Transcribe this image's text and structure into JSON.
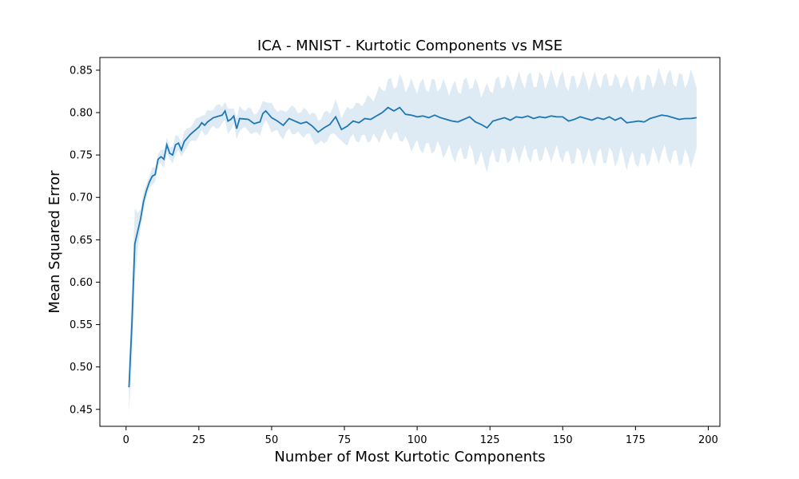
{
  "chart_data": {
    "type": "line",
    "title": "ICA - MNIST - Kurtotic Components vs MSE",
    "xlabel": "Number of Most Kurtotic Components",
    "ylabel": "Mean Squared Error",
    "xlim": [
      -9,
      204
    ],
    "ylim": [
      0.43,
      0.865
    ],
    "xticks": [
      0,
      25,
      50,
      75,
      100,
      125,
      150,
      175,
      200
    ],
    "yticks": [
      0.45,
      0.5,
      0.55,
      0.6,
      0.65,
      0.7,
      0.75,
      0.8,
      0.85
    ],
    "grid": false,
    "legend": "none",
    "colors": {
      "line": "#1f77b4",
      "band": "#1f77b4"
    },
    "series": [
      {
        "x_start": 1,
        "x_end": 196,
        "control_points": [
          [
            1,
            0.476
          ],
          [
            2,
            0.55
          ],
          [
            3,
            0.645
          ],
          [
            4,
            0.66
          ],
          [
            5,
            0.675
          ],
          [
            6,
            0.695
          ],
          [
            7,
            0.708
          ],
          [
            8,
            0.718
          ],
          [
            9,
            0.725
          ],
          [
            10,
            0.727
          ],
          [
            11,
            0.745
          ],
          [
            12,
            0.748
          ],
          [
            13,
            0.745
          ],
          [
            14,
            0.762
          ],
          [
            15,
            0.752
          ],
          [
            16,
            0.75
          ],
          [
            17,
            0.762
          ],
          [
            18,
            0.764
          ],
          [
            19,
            0.756
          ],
          [
            20,
            0.766
          ],
          [
            22,
            0.774
          ],
          [
            25,
            0.783
          ],
          [
            26,
            0.788
          ],
          [
            27,
            0.785
          ],
          [
            28,
            0.789
          ],
          [
            30,
            0.794
          ],
          [
            33,
            0.797
          ],
          [
            34,
            0.802
          ],
          [
            35,
            0.79
          ],
          [
            36,
            0.792
          ],
          [
            37,
            0.796
          ],
          [
            38,
            0.781
          ],
          [
            39,
            0.793
          ],
          [
            42,
            0.792
          ],
          [
            44,
            0.787
          ],
          [
            46,
            0.789
          ],
          [
            47,
            0.799
          ],
          [
            48,
            0.802
          ],
          [
            50,
            0.794
          ],
          [
            52,
            0.79
          ],
          [
            54,
            0.785
          ],
          [
            56,
            0.793
          ],
          [
            58,
            0.79
          ],
          [
            60,
            0.787
          ],
          [
            62,
            0.789
          ],
          [
            64,
            0.784
          ],
          [
            66,
            0.777
          ],
          [
            68,
            0.782
          ],
          [
            70,
            0.786
          ],
          [
            72,
            0.795
          ],
          [
            74,
            0.78
          ],
          [
            76,
            0.784
          ],
          [
            78,
            0.79
          ],
          [
            80,
            0.788
          ],
          [
            82,
            0.793
          ],
          [
            84,
            0.792
          ],
          [
            86,
            0.796
          ],
          [
            88,
            0.8
          ],
          [
            90,
            0.806
          ],
          [
            92,
            0.802
          ],
          [
            94,
            0.806
          ],
          [
            96,
            0.798
          ],
          [
            98,
            0.797
          ],
          [
            100,
            0.795
          ],
          [
            102,
            0.796
          ],
          [
            104,
            0.794
          ],
          [
            106,
            0.797
          ],
          [
            108,
            0.794
          ],
          [
            110,
            0.792
          ],
          [
            112,
            0.79
          ],
          [
            114,
            0.789
          ],
          [
            116,
            0.792
          ],
          [
            118,
            0.795
          ],
          [
            120,
            0.789
          ],
          [
            122,
            0.786
          ],
          [
            124,
            0.782
          ],
          [
            126,
            0.79
          ],
          [
            128,
            0.792
          ],
          [
            130,
            0.794
          ],
          [
            132,
            0.791
          ],
          [
            134,
            0.795
          ],
          [
            136,
            0.794
          ],
          [
            138,
            0.796
          ],
          [
            140,
            0.793
          ],
          [
            142,
            0.795
          ],
          [
            144,
            0.794
          ],
          [
            146,
            0.796
          ],
          [
            148,
            0.795
          ],
          [
            150,
            0.795
          ],
          [
            152,
            0.79
          ],
          [
            154,
            0.792
          ],
          [
            156,
            0.795
          ],
          [
            158,
            0.793
          ],
          [
            160,
            0.791
          ],
          [
            162,
            0.794
          ],
          [
            164,
            0.792
          ],
          [
            166,
            0.795
          ],
          [
            168,
            0.791
          ],
          [
            170,
            0.794
          ],
          [
            172,
            0.788
          ],
          [
            174,
            0.789
          ],
          [
            176,
            0.79
          ],
          [
            178,
            0.789
          ],
          [
            180,
            0.793
          ],
          [
            182,
            0.795
          ],
          [
            184,
            0.797
          ],
          [
            186,
            0.796
          ],
          [
            188,
            0.794
          ],
          [
            190,
            0.792
          ],
          [
            192,
            0.793
          ],
          [
            194,
            0.793
          ],
          [
            196,
            0.794
          ]
        ],
        "band_halfwidth_points": [
          [
            1,
            0.03
          ],
          [
            3,
            0.045
          ],
          [
            5,
            0.01
          ],
          [
            10,
            0.008
          ],
          [
            20,
            0.01
          ],
          [
            30,
            0.012
          ],
          [
            40,
            0.012
          ],
          [
            50,
            0.014
          ],
          [
            60,
            0.014
          ],
          [
            70,
            0.016
          ],
          [
            80,
            0.02
          ],
          [
            90,
            0.03
          ],
          [
            100,
            0.036
          ],
          [
            110,
            0.038
          ],
          [
            120,
            0.042
          ],
          [
            130,
            0.043
          ],
          [
            140,
            0.044
          ],
          [
            150,
            0.044
          ],
          [
            160,
            0.045
          ],
          [
            170,
            0.045
          ],
          [
            180,
            0.045
          ],
          [
            190,
            0.046
          ],
          [
            196,
            0.047
          ]
        ]
      }
    ]
  }
}
